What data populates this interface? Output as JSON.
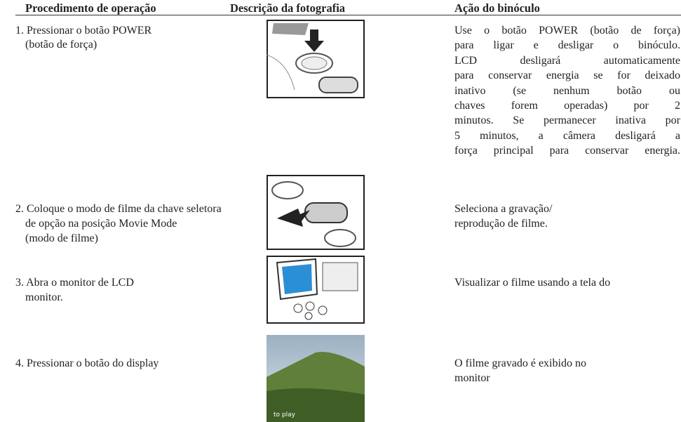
{
  "table": {
    "header": [
      "Procedimento de operação",
      "Descrição da fotografia",
      "Ação do binóculo"
    ],
    "rows": [
      {
        "procedure": [
          "1. Pressionar o botão POWER",
          "(botão de força)"
        ],
        "action": [
          "Use o botão POWER (botão de força)",
          "para ligar e desligar o binóculo.",
          "LCD desligará automaticamente",
          "para conservar energia se for deixado",
          "inativo (se nenhum botão ou",
          "chaves forem operadas) por 2",
          "minutos. Se permanecer inativa por",
          "5 minutos, a câmera desligará a",
          "força principal para conservar energia."
        ]
      },
      {
        "procedure": [
          "2. Coloque o modo de filme da chave seletora",
          "de opção na posição Movie Mode",
          "(modo de filme)"
        ],
        "action": [
          "Seleciona a gravação/",
          "reprodução de filme."
        ]
      },
      {
        "procedure": [
          "3.  Abra o monitor de LCD",
          "monitor."
        ],
        "action": [
          "Visualizar o filme usando a tela do"
        ]
      },
      {
        "procedure": [
          "4. Pressionar o botão do display"
        ],
        "action": [
          "O filme gravado é exibido no",
          "monitor"
        ],
        "photo_caption": "to play"
      }
    ]
  }
}
